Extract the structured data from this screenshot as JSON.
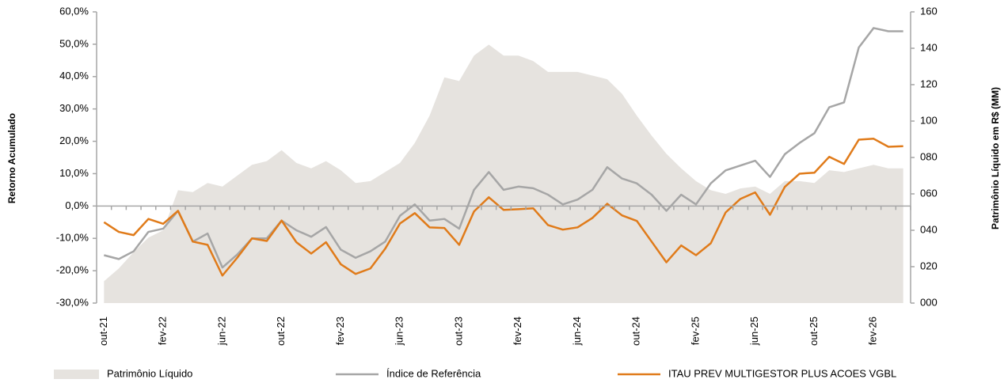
{
  "chart_data": {
    "type": "line",
    "y_label": "Retorno Acumulado",
    "y2_label": "Patrimônio Líquido em R$ (MM)",
    "categories": [
      "out-21",
      null,
      null,
      null,
      "fev-22",
      null,
      null,
      null,
      "jun-22",
      null,
      null,
      null,
      "out-22",
      null,
      null,
      null,
      "fev-23",
      null,
      null,
      null,
      "jun-23",
      null,
      null,
      null,
      "out-23",
      null,
      null,
      null,
      "fev-24",
      null,
      null,
      null,
      "jun-24",
      null,
      null,
      null,
      "out-24",
      null,
      null,
      null,
      "fev-25",
      null,
      null,
      null,
      "jun-25",
      null,
      null,
      null,
      "out-25",
      null,
      null,
      null,
      "fev-26",
      null,
      null
    ],
    "series": [
      {
        "name": "Patrimônio Líquido",
        "type": "area",
        "axis": "y2",
        "color": "#e6e3df",
        "values": [
          12,
          19,
          28,
          36,
          40,
          62,
          61,
          66,
          64,
          70,
          76,
          78,
          84,
          77,
          74,
          78,
          73,
          66,
          67,
          72,
          77,
          88,
          103,
          124,
          122,
          136,
          142,
          136,
          136,
          133,
          127,
          127,
          127,
          125,
          123,
          115,
          103,
          92,
          82,
          74,
          67,
          62,
          60,
          63,
          64,
          60,
          67,
          67,
          66,
          73,
          72,
          74,
          76,
          74,
          74
        ]
      },
      {
        "name": "Índice de Referência",
        "type": "line",
        "color": "#a6a6a6",
        "values": [
          -15.2,
          -16.4,
          -14,
          -8,
          -7,
          -1.5,
          -11,
          -8.5,
          -19,
          -15,
          -10,
          -10,
          -4.5,
          -7.5,
          -9.5,
          -6.5,
          -13.5,
          -16,
          -14,
          -11,
          -3,
          0.5,
          -4.5,
          -4,
          -7,
          5,
          10.5,
          5,
          6,
          5.5,
          3.5,
          0.5,
          2,
          5,
          12,
          8.5,
          7,
          3.5,
          -1.5,
          3.5,
          0.5,
          7,
          11,
          12.5,
          14,
          9,
          16,
          19.5,
          22.5,
          30.5,
          32,
          49,
          55,
          54,
          54
        ]
      },
      {
        "name": "ITAU PREV MULTIGESTOR PLUS ACOES VGBL",
        "type": "line",
        "color": "#e07b1a",
        "values": [
          -5,
          -8,
          -9,
          -4,
          -5.5,
          -1.5,
          -11,
          -12,
          -21.5,
          -16,
          -10,
          -10.8,
          -4.5,
          -11.2,
          -14.7,
          -11.2,
          -18,
          -21,
          -19.3,
          -13.2,
          -5.4,
          -2.2,
          -6.6,
          -6.8,
          -12,
          -1.7,
          2.7,
          -1.2,
          -1,
          -0.7,
          -5.9,
          -7.3,
          -6.6,
          -3.7,
          0.7,
          -2.9,
          -4.6,
          -11,
          -17.4,
          -12.2,
          -15.2,
          -11.5,
          -2,
          2.2,
          4.2,
          -2.7,
          5.9,
          10,
          10.3,
          15.2,
          13,
          20.5,
          20.8,
          18.3,
          18.5
        ]
      }
    ],
    "ylim": [
      -30,
      60
    ],
    "yticks": [
      {
        "value": -30,
        "label": "-30,0%"
      },
      {
        "value": -20,
        "label": "-20,0%"
      },
      {
        "value": -10,
        "label": "-10,0%"
      },
      {
        "value": 0,
        "label": "0,0%"
      },
      {
        "value": 10,
        "label": "10,0%"
      },
      {
        "value": 20,
        "label": "20,0%"
      },
      {
        "value": 30,
        "label": "30,0%"
      },
      {
        "value": 40,
        "label": "40,0%"
      },
      {
        "value": 50,
        "label": "50,0%"
      },
      {
        "value": 60,
        "label": "60,0%"
      }
    ],
    "y2lim": [
      0,
      160
    ],
    "y2ticks": [
      {
        "value": 0,
        "label": "000"
      },
      {
        "value": 20,
        "label": "020"
      },
      {
        "value": 40,
        "label": "040"
      },
      {
        "value": 60,
        "label": "060"
      },
      {
        "value": 80,
        "label": "080"
      },
      100,
      120,
      140,
      160
    ],
    "legend": "bottom"
  }
}
